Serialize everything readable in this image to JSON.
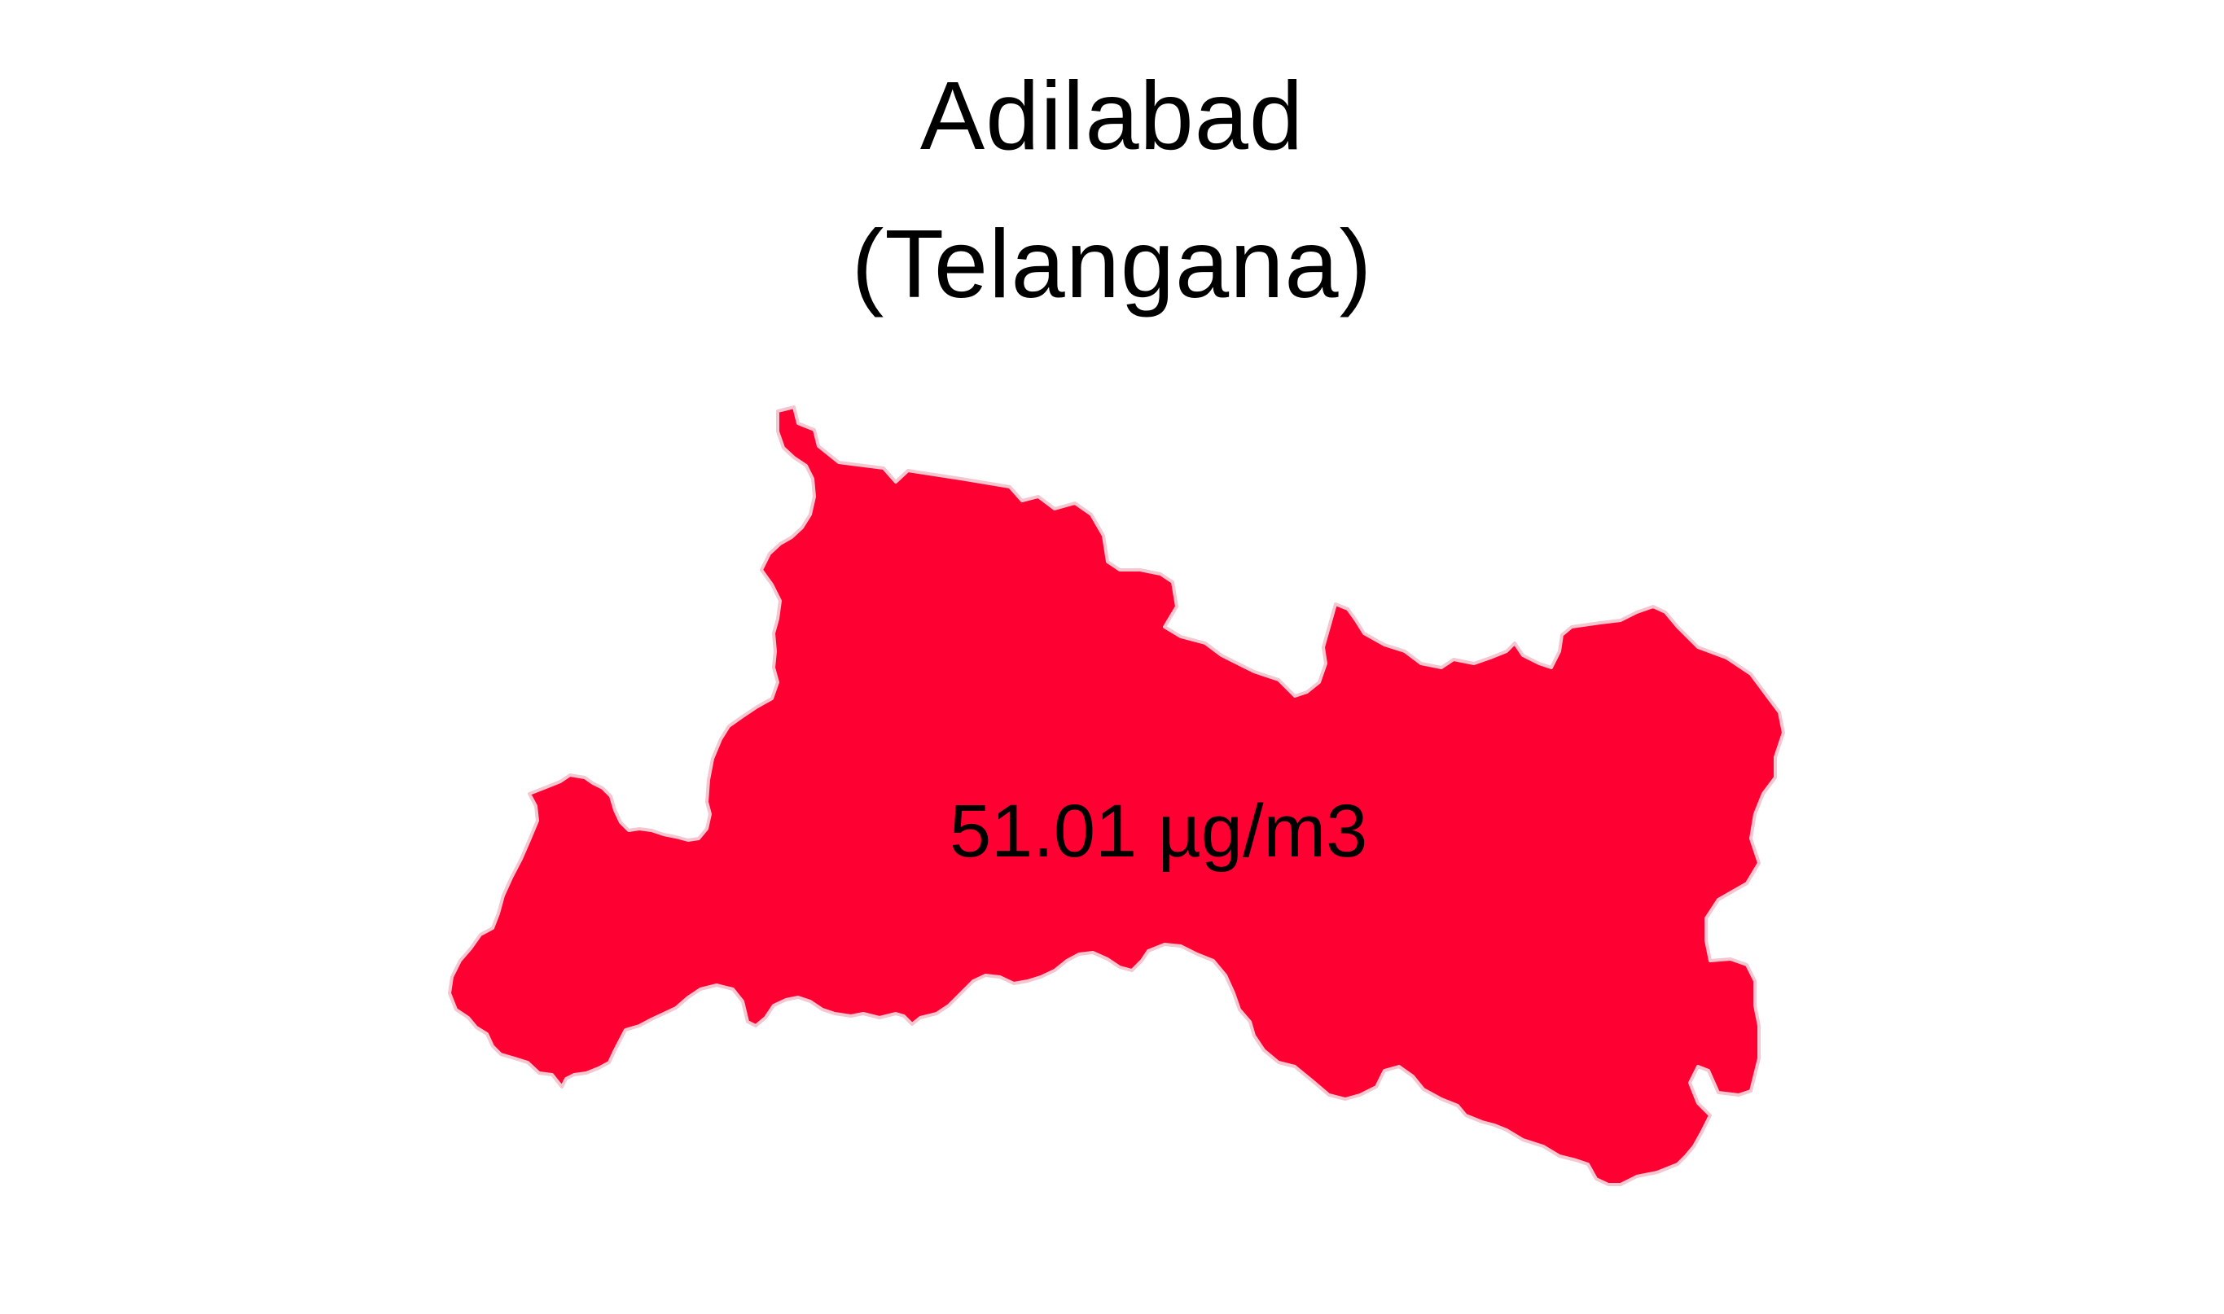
{
  "title": {
    "district": "Adilabad",
    "state": "(Telangana)"
  },
  "map": {
    "region": "Adilabad",
    "value_label": "51.01 µg/m3",
    "fill_color": "#ff0033",
    "border_color": "#f4c6d0",
    "background": "#ffffff"
  }
}
